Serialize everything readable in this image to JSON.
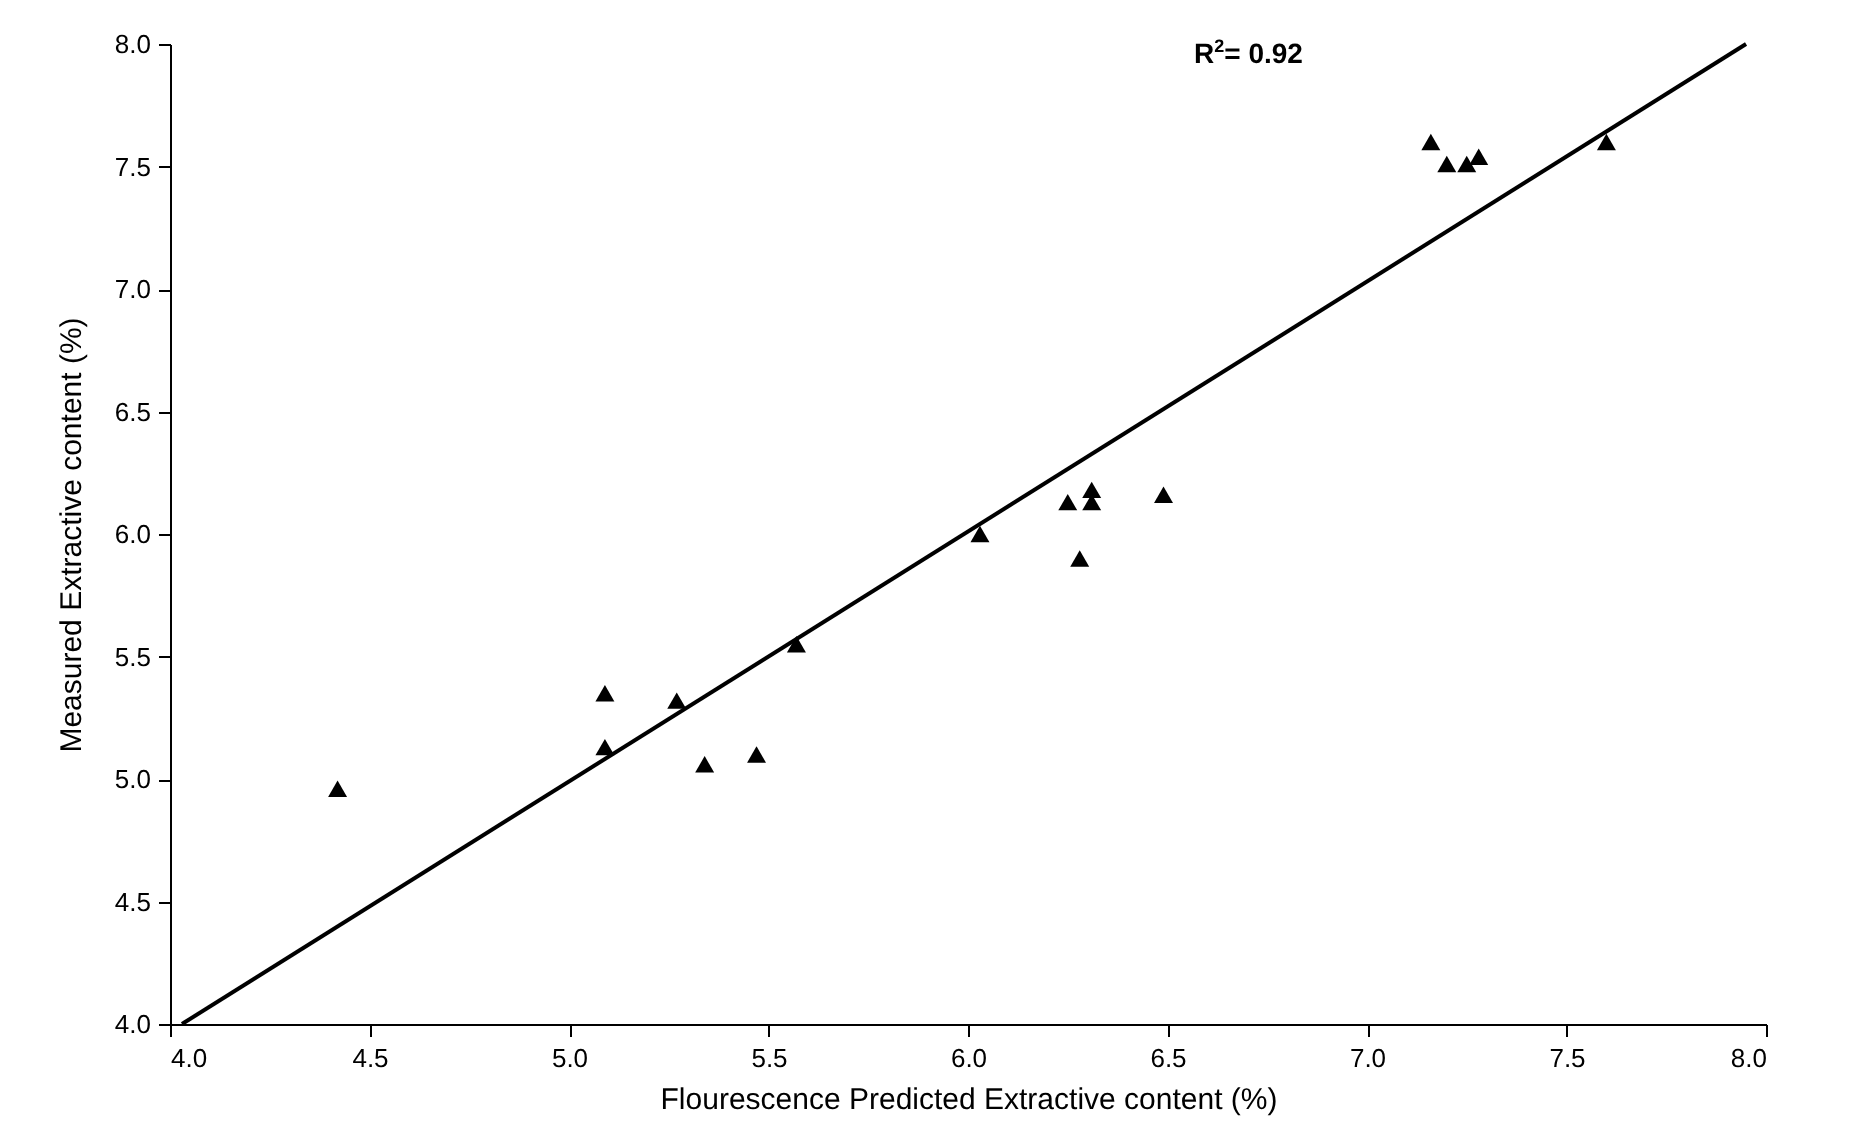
{
  "chart_data": {
    "type": "scatter",
    "xlabel": "Flourescence Predicted Extractive content (%)",
    "ylabel": "Measured Extractive content (%)",
    "annotations": [
      "R$^{2}$= 0.92"
    ],
    "xlim": [
      4.0,
      8.0
    ],
    "xticks": [
      {
        "value": 4,
        "label": "4.0"
      },
      {
        "value": 4.5,
        "label": "4.5"
      },
      {
        "value": 5,
        "label": "5.0"
      },
      {
        "value": 5.5,
        "label": "5.5"
      },
      {
        "value": 6,
        "label": "6.0"
      },
      {
        "value": 6.5,
        "label": "6.5"
      },
      {
        "value": 7,
        "label": "7.0"
      },
      {
        "value": 7.5,
        "label": "7.5"
      },
      {
        "value": 8,
        "label": "8.0"
      }
    ],
    "ylim": [
      4.0,
      8.0
    ],
    "yticks": [
      {
        "value": 4,
        "label": "4.0"
      },
      {
        "value": 4.5,
        "label": "4.5"
      },
      {
        "value": 5,
        "label": "5.0"
      },
      {
        "value": 5.5,
        "label": "5.5"
      },
      {
        "value": 6,
        "label": "6.0"
      },
      {
        "value": 6.5,
        "label": "6.5"
      },
      {
        "value": 7,
        "label": "7.0"
      },
      {
        "value": 7.5,
        "label": "7.5"
      },
      {
        "value": 8,
        "label": "8.0"
      }
    ],
    "grid": false,
    "series": [
      {
        "color": "#000000",
        "marker": "triangle",
        "x": [
          4.42,
          5.09,
          5.09,
          5.27,
          5.34,
          5.47,
          5.57,
          6.03,
          6.25,
          6.28,
          6.31,
          6.31,
          6.49,
          7.16,
          7.2,
          7.25,
          7.28,
          7.6
        ],
        "values": [
          4.96,
          5.35,
          5.13,
          5.32,
          5.06,
          5.1,
          5.55,
          6.0,
          6.13,
          5.9,
          6.18,
          6.13,
          6.16,
          7.6,
          7.51,
          7.51,
          7.54,
          7.6
        ]
      },
      {
        "type": "line",
        "color": "#000000",
        "line_style": "solid",
        "x": [
          4.03,
          7.95
        ],
        "values": [
          4.0,
          8.0
        ]
      }
    ]
  }
}
